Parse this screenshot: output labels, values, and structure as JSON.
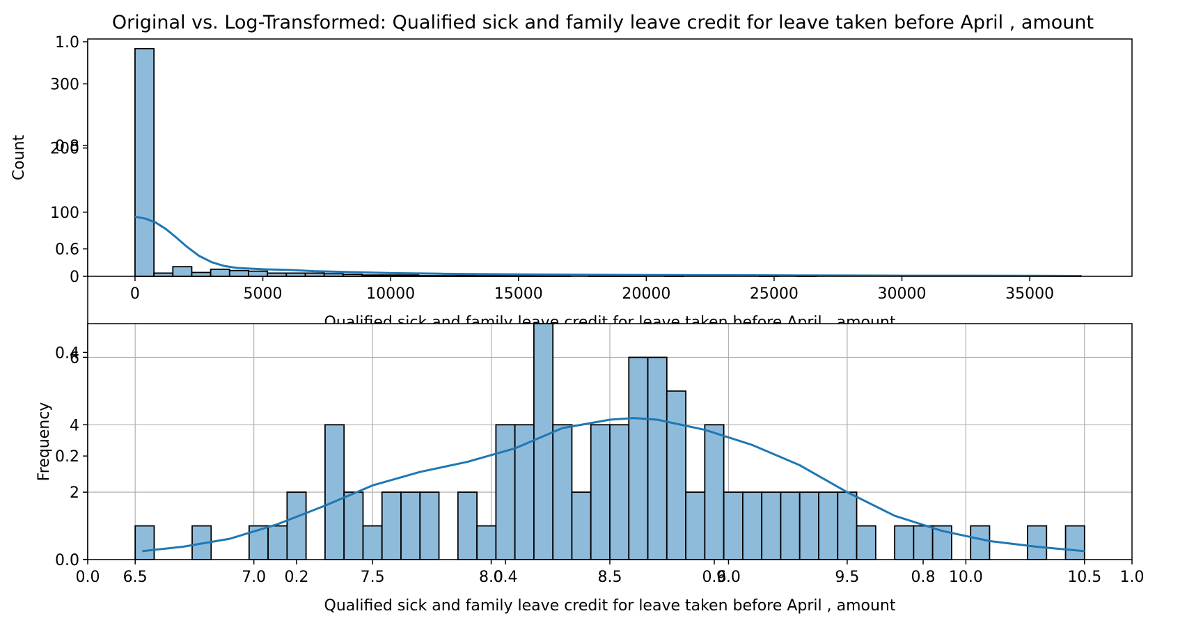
{
  "figure": {
    "title": "Original vs. Log-Transformed: Qualified sick and family leave credit for leave taken before April ,  amount",
    "colors": {
      "bar_fill": "#8fbbda",
      "bar_edge": "#000000",
      "kde": "#1f77b4",
      "grid": "#b0b0b0",
      "axis": "#000000"
    }
  },
  "chart_data": [
    {
      "type": "bar",
      "kind": "histogram",
      "x_label": "Qualified sick and family leave credit for leave taken before April ,  amount",
      "y_label": "Count",
      "xlim": [
        -1850,
        39000
      ],
      "ylim": [
        0,
        370
      ],
      "x_ticks": [
        0,
        5000,
        10000,
        15000,
        20000,
        25000,
        30000,
        35000
      ],
      "x_tick_labels": [
        "0",
        "5000",
        "10000",
        "15000",
        "20000",
        "25000",
        "30000",
        "35000"
      ],
      "y_ticks": [
        0,
        100,
        200,
        300
      ],
      "y_tick_labels": [
        "0",
        "100",
        "200",
        "300"
      ],
      "bin_start": 0,
      "bin_width": 740,
      "counts": [
        355,
        5,
        15,
        6,
        11,
        9,
        8,
        5,
        5,
        5,
        4,
        3,
        2,
        2,
        2,
        1,
        1,
        2,
        1,
        1,
        1,
        1,
        1,
        0,
        1,
        1,
        1,
        0,
        1,
        0,
        0,
        0,
        0,
        1,
        0,
        1,
        0,
        0,
        0,
        0,
        0,
        0,
        0,
        0,
        0,
        0,
        0,
        0,
        0,
        1
      ],
      "kde_x": [
        0,
        400,
        800,
        1200,
        1600,
        2000,
        2500,
        3000,
        3500,
        4000,
        5000,
        6000,
        7000,
        8000,
        10000,
        12000,
        15000,
        20000,
        25000,
        30000,
        35000,
        37000
      ],
      "kde_y": [
        93,
        90,
        84,
        74,
        61,
        47,
        32,
        22,
        16,
        13,
        11,
        10,
        8,
        7,
        5,
        4,
        3,
        2,
        1.5,
        1,
        0.8,
        0.6
      ],
      "grid": false
    },
    {
      "type": "bar",
      "kind": "histogram",
      "x_label": "Qualified sick and family leave credit for leave taken before April ,  amount",
      "y_label": "Frequency",
      "xlim": [
        6.3,
        10.7
      ],
      "ylim": [
        0,
        7.0
      ],
      "x_ticks": [
        6.5,
        7.0,
        7.5,
        8.0,
        8.5,
        9.0,
        9.5,
        10.0,
        10.5
      ],
      "x_tick_labels": [
        "6.5",
        "7.0",
        "7.5",
        "8.0",
        "8.5",
        "9.0",
        "9.5",
        "10.0",
        "10.5"
      ],
      "y_ticks": [
        0,
        2,
        4,
        6
      ],
      "y_tick_labels": [
        "0",
        "2",
        "4",
        "6"
      ],
      "bin_start": 6.5,
      "bin_width": 0.08,
      "counts": [
        1,
        0,
        0,
        1,
        0,
        0,
        1,
        1,
        2,
        0,
        4,
        2,
        1,
        2,
        2,
        2,
        0,
        2,
        1,
        4,
        4,
        7,
        4,
        2,
        4,
        4,
        6,
        6,
        5,
        2,
        4,
        2,
        2,
        2,
        2,
        2,
        2,
        2,
        1,
        0,
        1,
        1,
        1,
        0,
        1,
        0,
        0,
        1,
        0,
        1
      ],
      "kde_x": [
        6.53,
        6.7,
        6.9,
        7.1,
        7.3,
        7.5,
        7.7,
        7.9,
        8.1,
        8.3,
        8.5,
        8.6,
        8.7,
        8.9,
        9.1,
        9.3,
        9.5,
        9.7,
        9.9,
        10.1,
        10.3,
        10.5
      ],
      "kde_y": [
        0.25,
        0.38,
        0.62,
        1.05,
        1.6,
        2.2,
        2.6,
        2.9,
        3.3,
        3.9,
        4.15,
        4.2,
        4.15,
        3.85,
        3.4,
        2.8,
        2.0,
        1.3,
        0.85,
        0.55,
        0.38,
        0.25
      ],
      "grid": true
    }
  ],
  "overlay_axes": {
    "x_ticks": [
      0.0,
      0.2,
      0.4,
      0.6,
      0.8,
      1.0
    ],
    "x_tick_labels": [
      "0.0",
      "0.2",
      "0.4",
      "0.6",
      "0.8",
      "1.0"
    ],
    "y_ticks": [
      0.0,
      0.2,
      0.4,
      0.6,
      0.8,
      1.0
    ],
    "y_tick_labels": [
      "0.0",
      "0.2",
      "0.4",
      "0.6",
      "0.8",
      "1.0"
    ]
  }
}
